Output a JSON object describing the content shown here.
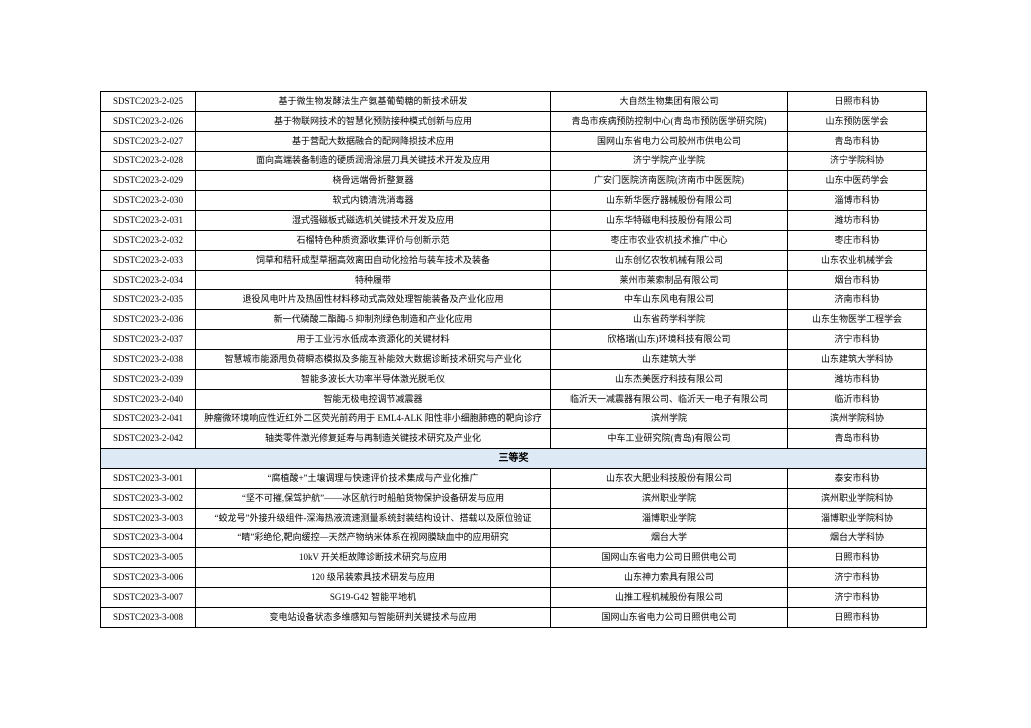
{
  "page": {
    "background_color": "#ffffff",
    "text_color": "#000000",
    "table_border_color": "#000000",
    "section_header_background": "#dde9f4"
  },
  "table": {
    "columns": [
      "code",
      "title",
      "organization",
      "recommender"
    ],
    "rows": [
      {
        "type": "entry",
        "code": "SDSTC2023-2-025",
        "title": "基于微生物发酵法生产氨基葡萄糖的新技术研发",
        "organization": "大自然生物集团有限公司",
        "recommender": "日照市科协"
      },
      {
        "type": "entry",
        "code": "SDSTC2023-2-026",
        "title": "基于物联网技术的智慧化预防接种模式创新与应用",
        "organization": "青岛市疾病预防控制中心(青岛市预防医学研究院)",
        "recommender": "山东预防医学会"
      },
      {
        "type": "entry",
        "code": "SDSTC2023-2-027",
        "title": "基于营配大数据融合的配网降损技术应用",
        "organization": "国网山东省电力公司胶州市供电公司",
        "recommender": "青岛市科协"
      },
      {
        "type": "entry",
        "code": "SDSTC2023-2-028",
        "title": "面向高端装备制造的硬质润滑涂层刀具关键技术开发及应用",
        "organization": "济宁学院产业学院",
        "recommender": "济宁学院科协"
      },
      {
        "type": "entry",
        "code": "SDSTC2023-2-029",
        "title": "桡骨远端骨折整复器",
        "organization": "广安门医院济南医院(济南市中医医院)",
        "recommender": "山东中医药学会"
      },
      {
        "type": "entry",
        "code": "SDSTC2023-2-030",
        "title": "软式内镜清洗消毒器",
        "organization": "山东新华医疗器械股份有限公司",
        "recommender": "淄博市科协"
      },
      {
        "type": "entry",
        "code": "SDSTC2023-2-031",
        "title": "湿式强磁板式磁选机关键技术开发及应用",
        "organization": "山东华特磁电科技股份有限公司",
        "recommender": "潍坊市科协"
      },
      {
        "type": "entry",
        "code": "SDSTC2023-2-032",
        "title": "石榴特色种质资源收集评价与创新示范",
        "organization": "枣庄市农业农机技术推广中心",
        "recommender": "枣庄市科协"
      },
      {
        "type": "entry",
        "code": "SDSTC2023-2-033",
        "title": "饲草和秸秆成型草捆高效离田自动化捡拾与装车技术及装备",
        "organization": "山东创亿农牧机械有限公司",
        "recommender": "山东农业机械学会"
      },
      {
        "type": "entry",
        "code": "SDSTC2023-2-034",
        "title": "特种履带",
        "organization": "莱州市莱索制品有限公司",
        "recommender": "烟台市科协"
      },
      {
        "type": "entry",
        "code": "SDSTC2023-2-035",
        "title": "退役风电叶片及热固性材料移动式高效处理智能装备及产业化应用",
        "organization": "中车山东风电有限公司",
        "recommender": "济南市科协"
      },
      {
        "type": "entry",
        "code": "SDSTC2023-2-036",
        "title": "新一代磷酸二酯酶-5 抑制剂绿色制造和产业化应用",
        "organization": "山东省药学科学院",
        "recommender": "山东生物医学工程学会"
      },
      {
        "type": "entry",
        "code": "SDSTC2023-2-037",
        "title": "用于工业污水低成本资源化的关键材料",
        "organization": "欣格瑞(山东)环境科技有限公司",
        "recommender": "济宁市科协"
      },
      {
        "type": "entry",
        "code": "SDSTC2023-2-038",
        "title": "智慧城市能源甩负荷瞬态模拟及多能互补能效大数据诊断技术研究与产业化",
        "organization": "山东建筑大学",
        "recommender": "山东建筑大学科协"
      },
      {
        "type": "entry",
        "code": "SDSTC2023-2-039",
        "title": "智能多波长大功率半导体激光脱毛仪",
        "organization": "山东杰美医疗科技有限公司",
        "recommender": "潍坊市科协"
      },
      {
        "type": "entry",
        "code": "SDSTC2023-2-040",
        "title": "智能无极电控调节减震器",
        "organization": "临沂天一减震器有限公司、临沂天一电子有限公司",
        "recommender": "临沂市科协"
      },
      {
        "type": "entry",
        "code": "SDSTC2023-2-041",
        "title": "肿瘤微环境响应性近红外二区荧光前药用于 EML4-ALK 阳性非小细胞肺癌的靶向诊疗",
        "organization": "滨州学院",
        "recommender": "滨州学院科协"
      },
      {
        "type": "entry",
        "code": "SDSTC2023-2-042",
        "title": "轴类零件激光修复延寿与再制造关键技术研究及产业化",
        "organization": "中车工业研究院(青岛)有限公司",
        "recommender": "青岛市科协"
      },
      {
        "type": "section",
        "label": "三等奖"
      },
      {
        "type": "entry",
        "code": "SDSTC2023-3-001",
        "title": "“腐植酸+”土壤调理与快速评价技术集成与产业化推广",
        "organization": "山东农大肥业科技股份有限公司",
        "recommender": "泰安市科协"
      },
      {
        "type": "entry",
        "code": "SDSTC2023-3-002",
        "title": "“坚不可摧,保驾护航”——冰区航行时船舶货物保护设备研发与应用",
        "organization": "滨州职业学院",
        "recommender": "滨州职业学院科协"
      },
      {
        "type": "entry",
        "code": "SDSTC2023-3-003",
        "title": "“蛟龙号”外接升级组件-深海热液流速测量系统封装结构设计、搭载以及原位验证",
        "organization": "淄博职业学院",
        "recommender": "淄博职业学院科协"
      },
      {
        "type": "entry",
        "code": "SDSTC2023-3-004",
        "title": "“睛”彩绝伦,靶向缓控—天然产物纳米体系在视网膜缺血中的应用研究",
        "organization": "烟台大学",
        "recommender": "烟台大学科协"
      },
      {
        "type": "entry",
        "code": "SDSTC2023-3-005",
        "title": "10kV 开关柜故障诊断技术研究与应用",
        "organization": "国网山东省电力公司日照供电公司",
        "recommender": "日照市科协"
      },
      {
        "type": "entry",
        "code": "SDSTC2023-3-006",
        "title": "120 级吊装索具技术研发与应用",
        "organization": "山东神力索具有限公司",
        "recommender": "济宁市科协"
      },
      {
        "type": "entry",
        "code": "SDSTC2023-3-007",
        "title": "SG19-G42 智能平地机",
        "organization": "山推工程机械股份有限公司",
        "recommender": "济宁市科协"
      },
      {
        "type": "entry",
        "code": "SDSTC2023-3-008",
        "title": "变电站设备状态多维感知与智能研判关键技术与应用",
        "organization": "国网山东省电力公司日照供电公司",
        "recommender": "日照市科协"
      }
    ]
  }
}
